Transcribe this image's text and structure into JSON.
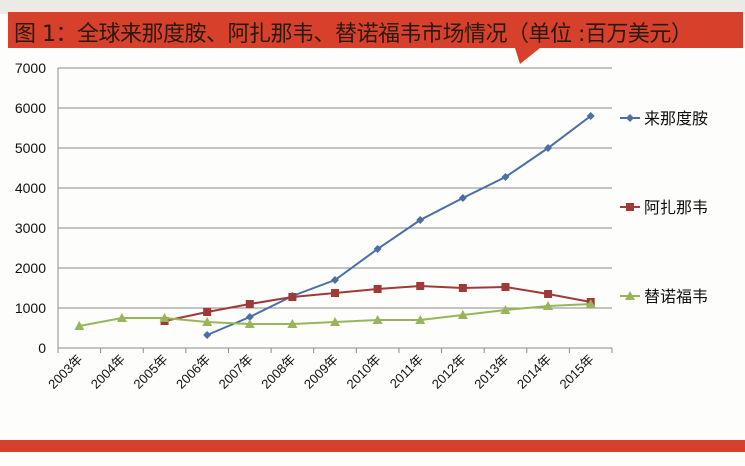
{
  "chart_data": {
    "type": "line",
    "title": "图 1：全球来那度胺、阿扎那韦、替诺福韦市场情况（单位 :百万美元）",
    "categories": [
      "2003年",
      "2004年",
      "2005年",
      "2006年",
      "2007年",
      "2008年",
      "2009年",
      "2010年",
      "2011年",
      "2012年",
      "2013年",
      "2014年",
      "2015年"
    ],
    "ylim": [
      0,
      7000
    ],
    "yticks": [
      "0",
      "1000",
      "2000",
      "3000",
      "4000",
      "5000",
      "6000",
      "7000"
    ],
    "grid": true,
    "legend": "right",
    "series": [
      {
        "name": "来那度胺",
        "color": "#4a6fa5",
        "marker": "diamond",
        "values": [
          null,
          null,
          null,
          325,
          775,
          1300,
          1700,
          2475,
          3200,
          3750,
          4275,
          5000,
          5800
        ]
      },
      {
        "name": "阿扎那韦",
        "color": "#a0393a",
        "marker": "square",
        "values": [
          null,
          null,
          675,
          900,
          1100,
          1275,
          1375,
          1475,
          1550,
          1500,
          1525,
          1350,
          1150
        ]
      },
      {
        "name": "替诺福韦",
        "color": "#98b55a",
        "marker": "triangle",
        "values": [
          550,
          750,
          750,
          650,
          600,
          600,
          650,
          700,
          700,
          825,
          950,
          1050,
          1100
        ]
      }
    ]
  }
}
